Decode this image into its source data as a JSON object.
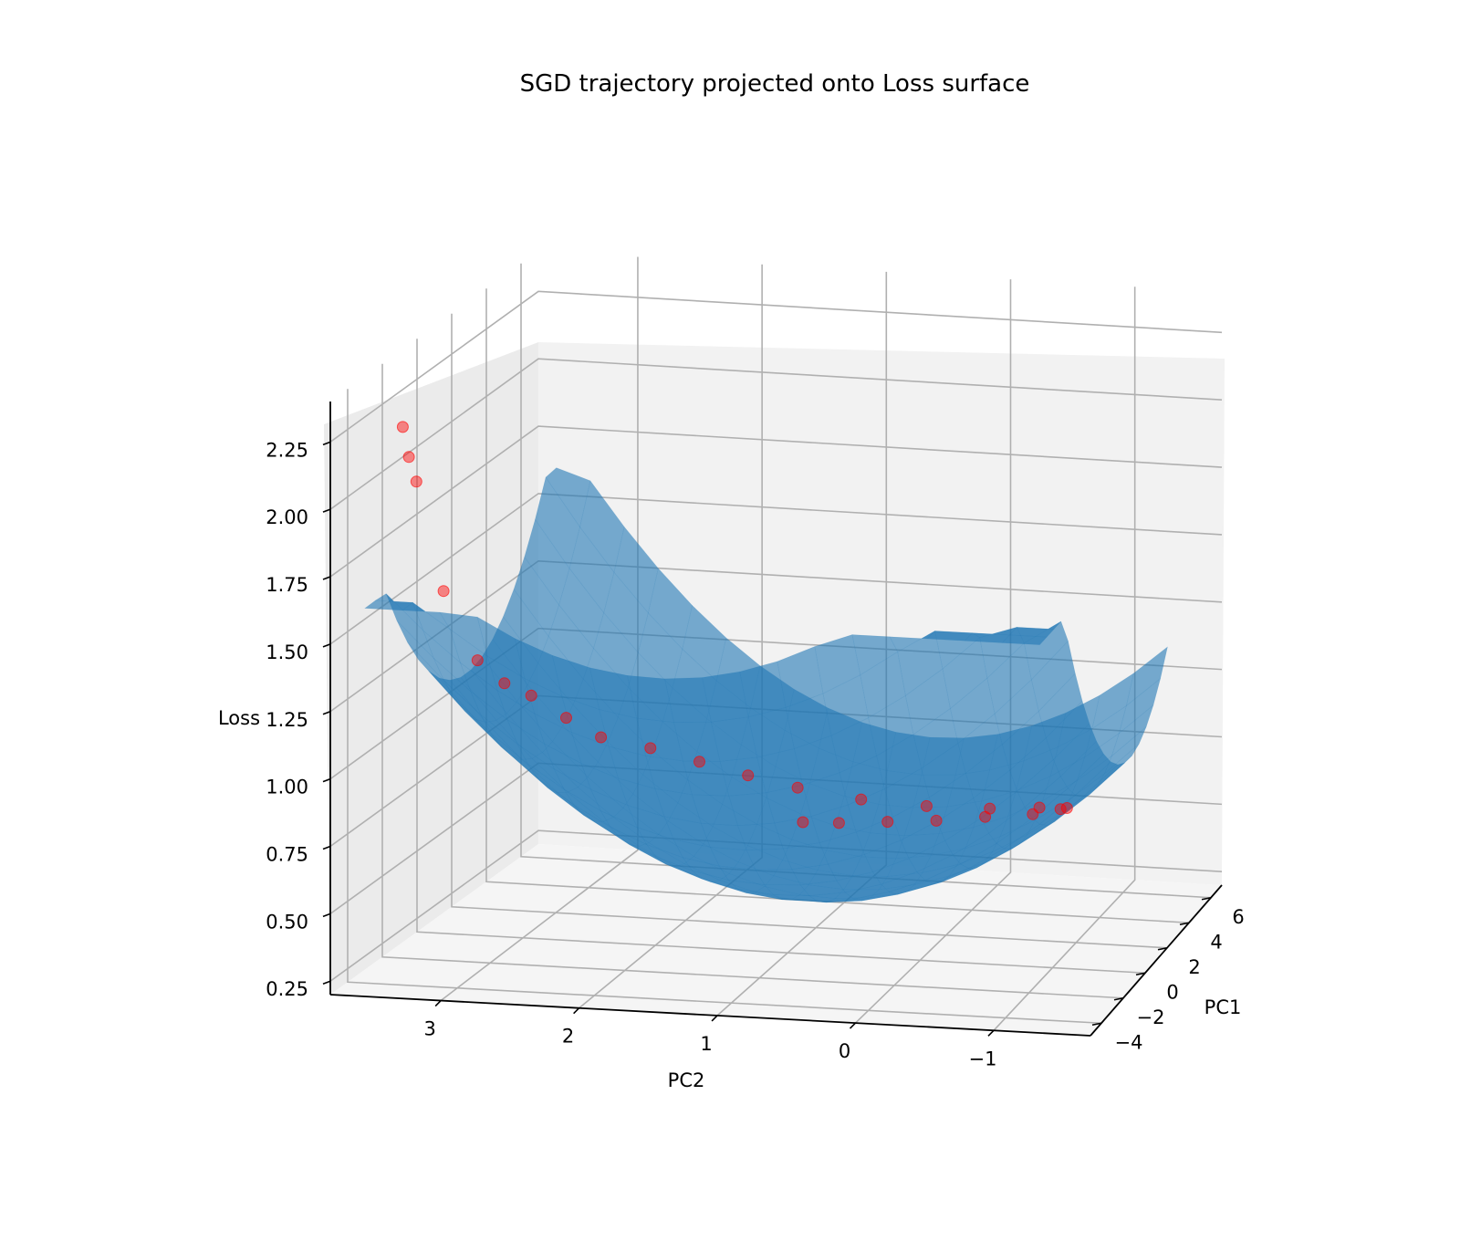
{
  "chart_data": {
    "type": "scatter",
    "subtype": "3d-surface-with-scatter",
    "title": "SGD trajectory projected onto Loss surface",
    "axes": {
      "x": {
        "label": "PC2",
        "ticks": [
          "3",
          "2",
          "1",
          "0",
          "−1"
        ],
        "range": [
          -1.7,
          3.8
        ]
      },
      "y": {
        "label": "PC1",
        "ticks": [
          "−4",
          "−2",
          "0",
          "2",
          "4",
          "6"
        ],
        "range": [
          -5,
          7
        ]
      },
      "z": {
        "label": "Loss",
        "ticks": [
          "0.25",
          "0.50",
          "0.75",
          "1.00",
          "1.25",
          "1.50",
          "1.75",
          "2.00",
          "2.25"
        ],
        "range": [
          0.2,
          2.4
        ]
      }
    },
    "grid": true,
    "surface": {
      "name": "",
      "color": "#1f77b4",
      "alpha": 0.6
    },
    "trajectory": {
      "name": "",
      "color": "#ff0000",
      "alpha": 0.3,
      "points": [
        {
          "pc2": 3.3,
          "pc1": -4.8,
          "loss": 2.31
        },
        {
          "pc2": 3.28,
          "pc1": -4.6,
          "loss": 2.19
        },
        {
          "pc2": 3.25,
          "pc1": -4.4,
          "loss": 2.09
        },
        {
          "pc2": 3.1,
          "pc1": -4.0,
          "loss": 1.67
        },
        {
          "pc2": 2.9,
          "pc1": -3.6,
          "loss": 1.4
        },
        {
          "pc2": 2.75,
          "pc1": -3.2,
          "loss": 1.3
        },
        {
          "pc2": 2.6,
          "pc1": -2.8,
          "loss": 1.24
        },
        {
          "pc2": 2.4,
          "pc1": -2.3,
          "loss": 1.14
        },
        {
          "pc2": 2.2,
          "pc1": -1.8,
          "loss": 1.05
        },
        {
          "pc2": 1.9,
          "pc1": -1.2,
          "loss": 0.99
        },
        {
          "pc2": 1.6,
          "pc1": -0.6,
          "loss": 0.92
        },
        {
          "pc2": 1.3,
          "pc1": 0.0,
          "loss": 0.85
        },
        {
          "pc2": 1.0,
          "pc1": 0.7,
          "loss": 0.78
        },
        {
          "pc2": 0.6,
          "pc1": 1.5,
          "loss": 0.71
        },
        {
          "pc2": 0.2,
          "pc1": 2.5,
          "loss": 0.65
        },
        {
          "pc2": -0.2,
          "pc1": 3.4,
          "loss": 0.61
        },
        {
          "pc2": -0.5,
          "pc1": 4.3,
          "loss": 0.58
        },
        {
          "pc2": -0.65,
          "pc1": 5.0,
          "loss": 0.55
        },
        {
          "pc2": -0.55,
          "pc1": 5.5,
          "loss": 0.52
        },
        {
          "pc2": -0.3,
          "pc1": 5.8,
          "loss": 0.48
        },
        {
          "pc2": 0.1,
          "pc1": 6.0,
          "loss": 0.45
        },
        {
          "pc2": 0.5,
          "pc1": 6.1,
          "loss": 0.42
        },
        {
          "pc2": 0.9,
          "pc1": 6.2,
          "loss": 0.4
        },
        {
          "pc2": 1.3,
          "pc1": 6.3,
          "loss": 0.38
        },
        {
          "pc2": 1.6,
          "pc1": 6.4,
          "loss": 0.37
        }
      ]
    }
  }
}
